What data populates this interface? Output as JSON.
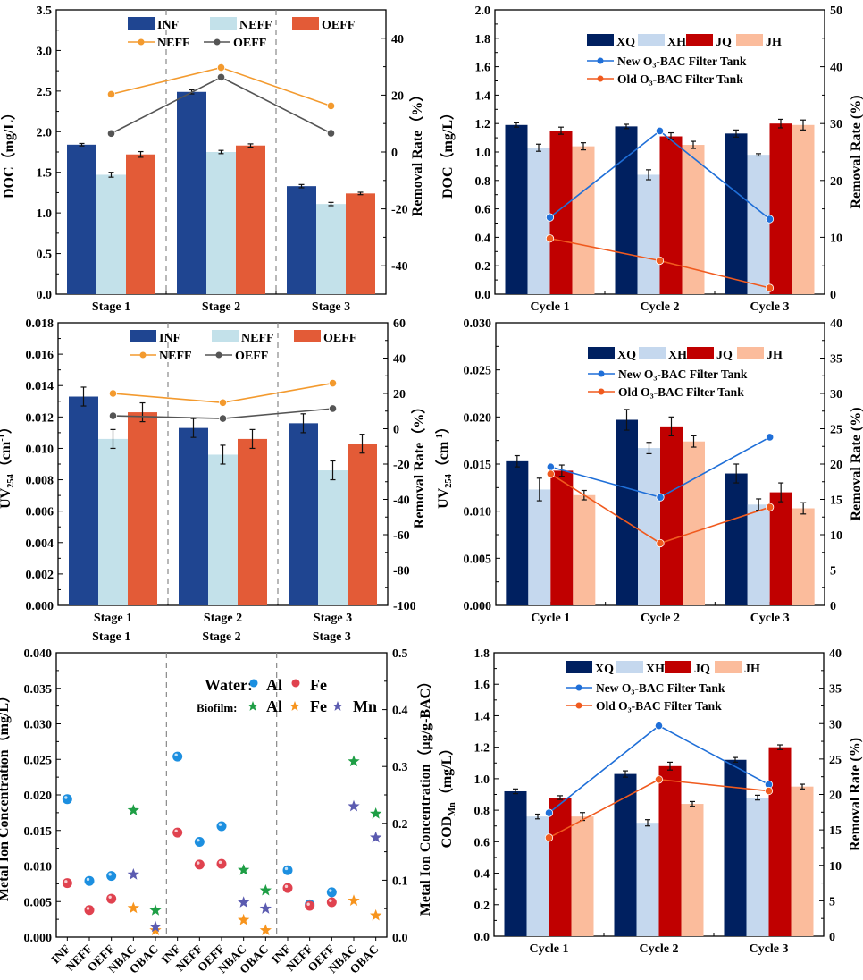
{
  "chart_data": [
    {
      "id": "doc-stage",
      "type": "bar",
      "title": "",
      "categories": [
        "Stage 1",
        "Stage 2",
        "Stage 3"
      ],
      "xlabel": "",
      "ylabel": "DOC（mg/L）",
      "ylim": [
        0,
        3.5
      ],
      "yticks": [
        0.0,
        0.5,
        1.0,
        1.5,
        2.0,
        2.5,
        3.0,
        3.5
      ],
      "ytick_decimals": 1,
      "y2label": "Removal Rate（%）",
      "y2lim": [
        -50,
        50
      ],
      "y2ticks": [
        -40,
        -20,
        0,
        20,
        40
      ],
      "grid": false,
      "dividers": true,
      "legend_placement": "top-center",
      "series": [
        {
          "name": "INF",
          "color": "#1F4591",
          "values": [
            1.84,
            2.49,
            1.33
          ],
          "errors": [
            0.015,
            0.025,
            0.02
          ]
        },
        {
          "name": "NEFF",
          "color": "#C3E1EA",
          "values": [
            1.47,
            1.75,
            1.11
          ],
          "errors": [
            0.03,
            0.02,
            0.02
          ]
        },
        {
          "name": "OEFF",
          "color": "#E35B37",
          "values": [
            1.72,
            1.83,
            1.24
          ],
          "errors": [
            0.035,
            0.02,
            0.015
          ]
        }
      ],
      "line_series": [
        {
          "name": "NEFF",
          "color": "#F39A2E",
          "values": [
            20.3,
            29.7,
            16.2
          ]
        },
        {
          "name": "OEFF",
          "color": "#555555",
          "values": [
            6.5,
            26.3,
            6.6
          ]
        }
      ]
    },
    {
      "id": "doc-cycle",
      "type": "bar",
      "title": "",
      "categories": [
        "Cycle 1",
        "Cycle 2",
        "Cycle 3"
      ],
      "xlabel": "",
      "ylabel": "DOC（mg/L）",
      "ylim": [
        0,
        2.0
      ],
      "yticks": [
        0.0,
        0.2,
        0.4,
        0.6,
        0.8,
        1.0,
        1.2,
        1.4,
        1.6,
        1.8,
        2.0
      ],
      "ytick_decimals": 1,
      "y2label": "Removal Rate (%)",
      "y2lim": [
        0,
        50
      ],
      "y2ticks": [
        0,
        10,
        20,
        30,
        40,
        50
      ],
      "grid": false,
      "dividers": false,
      "legend_placement": "top-center",
      "series": [
        {
          "name": "XQ",
          "color": "#002060",
          "values": [
            1.19,
            1.18,
            1.13
          ],
          "errors": [
            0.015,
            0.015,
            0.025
          ]
        },
        {
          "name": "XH",
          "color": "#C5D8EE",
          "values": [
            1.03,
            0.84,
            0.98
          ],
          "errors": [
            0.025,
            0.035,
            0.008
          ]
        },
        {
          "name": "JQ",
          "color": "#C00000",
          "values": [
            1.15,
            1.11,
            1.2
          ],
          "errors": [
            0.025,
            0.025,
            0.03
          ]
        },
        {
          "name": "JH",
          "color": "#FBBC9C",
          "values": [
            1.04,
            1.05,
            1.19
          ],
          "errors": [
            0.025,
            0.025,
            0.035
          ]
        }
      ],
      "line_series": [
        {
          "name": "New O₃-BAC Filter Tank",
          "color": "#1F6FD8",
          "values": [
            13.5,
            28.7,
            13.2
          ]
        },
        {
          "name": "Old O₃-BAC Filter Tank",
          "color": "#F05A1E",
          "values": [
            9.8,
            5.9,
            1.1
          ]
        }
      ]
    },
    {
      "id": "uv-stage",
      "type": "bar",
      "title": "",
      "categories": [
        "Stage 1",
        "Stage 2",
        "Stage 3"
      ],
      "xlabel": "",
      "ylabel": "UV254（cm-1）",
      "ylim": [
        0,
        0.018
      ],
      "yticks": [
        0.0,
        0.002,
        0.004,
        0.006,
        0.008,
        0.01,
        0.012,
        0.014,
        0.016,
        0.018
      ],
      "ytick_decimals": 3,
      "y2label": "Removal Rate（%）",
      "y2lim": [
        -100,
        60
      ],
      "y2ticks": [
        -100,
        -80,
        -60,
        -40,
        -20,
        0,
        20,
        40,
        60
      ],
      "grid": false,
      "dividers": true,
      "legend_placement": "top-center",
      "series": [
        {
          "name": "INF",
          "color": "#1F4591",
          "values": [
            0.0133,
            0.0113,
            0.0116
          ],
          "errors": [
            0.0006,
            0.0006,
            0.0006
          ]
        },
        {
          "name": "NEFF",
          "color": "#C3E1EA",
          "values": [
            0.0106,
            0.0096,
            0.0086
          ],
          "errors": [
            0.0006,
            0.0006,
            0.0006
          ]
        },
        {
          "name": "OEFF",
          "color": "#E35B37",
          "values": [
            0.0123,
            0.0106,
            0.0103
          ],
          "errors": [
            0.0006,
            0.0006,
            0.0006
          ]
        }
      ],
      "line_series": [
        {
          "name": "NEFF",
          "color": "#F39A2E",
          "values": [
            20.0,
            14.8,
            25.8
          ]
        },
        {
          "name": "OEFF",
          "color": "#555555",
          "values": [
            7.3,
            5.8,
            11.4
          ]
        }
      ]
    },
    {
      "id": "uv-cycle",
      "type": "bar",
      "title": "",
      "categories": [
        "Cycle 1",
        "Cycle 2",
        "Cycle 3"
      ],
      "xlabel": "",
      "ylabel": "UV254（cm-1）",
      "ylim": [
        0,
        0.03
      ],
      "yticks": [
        0.0,
        0.005,
        0.01,
        0.015,
        0.02,
        0.025,
        0.03
      ],
      "ytick_decimals": 3,
      "y2label": "Removal Rate (%)",
      "y2lim": [
        0,
        40
      ],
      "y2ticks": [
        0,
        5,
        10,
        15,
        20,
        25,
        30,
        35,
        40
      ],
      "grid": false,
      "dividers": false,
      "legend_placement": "top-center",
      "series": [
        {
          "name": "XQ",
          "color": "#002060",
          "values": [
            0.0153,
            0.0197,
            0.014
          ],
          "errors": [
            0.0006,
            0.0011,
            0.001
          ]
        },
        {
          "name": "XH",
          "color": "#C5D8EE",
          "values": [
            0.0123,
            0.0167,
            0.0107
          ],
          "errors": [
            0.0012,
            0.0006,
            0.0006
          ]
        },
        {
          "name": "JQ",
          "color": "#C00000",
          "values": [
            0.0143,
            0.019,
            0.012
          ],
          "errors": [
            0.0006,
            0.001,
            0.001
          ]
        },
        {
          "name": "JH",
          "color": "#FBBC9C",
          "values": [
            0.0117,
            0.0174,
            0.0103
          ],
          "errors": [
            0.0005,
            0.0006,
            0.0006
          ]
        }
      ],
      "line_series": [
        {
          "name": "New O₃-BAC Filter Tank",
          "color": "#1F6FD8",
          "values": [
            19.6,
            15.3,
            23.8
          ]
        },
        {
          "name": "Old O₃-BAC Filter Tank",
          "color": "#F05A1E",
          "values": [
            18.6,
            8.8,
            13.9
          ]
        }
      ]
    },
    {
      "id": "metal-ions",
      "type": "scatter",
      "title": "",
      "group_labels": [
        "Stage 1",
        "Stage 2",
        "Stage 3"
      ],
      "categories": [
        "INF",
        "NEFF",
        "OEFF",
        "NBAC",
        "OBAC",
        "INF",
        "NEFF",
        "OEFF",
        "NBAC",
        "OBAC",
        "INF",
        "NEFF",
        "OEFF",
        "NBAC",
        "OBAC"
      ],
      "xlabel": "",
      "ylabel": "Metal Ion Concentration（mg/L）",
      "ylim": [
        0,
        0.04
      ],
      "yticks": [
        0.0,
        0.005,
        0.01,
        0.015,
        0.02,
        0.025,
        0.03,
        0.035,
        0.04
      ],
      "ytick_decimals": 3,
      "y2label": "Metal Ion Concentration（μg/g-BAC）",
      "y2lim": [
        0,
        0.5
      ],
      "y2ticks": [
        0.0,
        0.1,
        0.2,
        0.3,
        0.4,
        0.5
      ],
      "grid": false,
      "dividers": true,
      "legend_placement": "top-right",
      "legend_rows": [
        {
          "label": "Water:",
          "items": [
            "Water Al",
            "Water Fe"
          ]
        },
        {
          "label": "Biofilm:",
          "items": [
            "Biofilm Al",
            "Biofilm Fe",
            "Biofilm Mn"
          ]
        }
      ],
      "series": [
        {
          "name": "Water Al",
          "short": "Al",
          "group": "Water",
          "marker": "sphere",
          "axis": "left",
          "color": "#1C8FE0",
          "points": [
            [
              0,
              0.0194
            ],
            [
              1,
              0.0079
            ],
            [
              2,
              0.0086
            ],
            [
              5,
              0.0254
            ],
            [
              6,
              0.0134
            ],
            [
              7,
              0.0156
            ],
            [
              10,
              0.0094
            ],
            [
              11,
              0.0046
            ],
            [
              12,
              0.0063
            ]
          ]
        },
        {
          "name": "Water Fe",
          "short": "Fe",
          "group": "Water",
          "marker": "sphere",
          "axis": "left",
          "color": "#E0424F",
          "points": [
            [
              0,
              0.0076
            ],
            [
              1,
              0.0038
            ],
            [
              2,
              0.0054
            ],
            [
              5,
              0.0147
            ],
            [
              6,
              0.0102
            ],
            [
              7,
              0.0103
            ],
            [
              10,
              0.0069
            ],
            [
              11,
              0.0044
            ],
            [
              12,
              0.0049
            ]
          ]
        },
        {
          "name": "Biofilm Al",
          "short": "Al",
          "group": "Biofilm",
          "marker": "star",
          "axis": "right",
          "color": "#1E9E45",
          "points": [
            [
              3,
              0.223
            ],
            [
              4,
              0.047
            ],
            [
              8,
              0.118
            ],
            [
              9,
              0.082
            ],
            [
              13,
              0.309
            ],
            [
              14,
              0.217
            ]
          ]
        },
        {
          "name": "Biofilm Fe",
          "short": "Fe",
          "group": "Biofilm",
          "marker": "star",
          "axis": "right",
          "color": "#F7941D",
          "points": [
            [
              3,
              0.051
            ],
            [
              4,
              0.012
            ],
            [
              8,
              0.03
            ],
            [
              9,
              0.012
            ],
            [
              13,
              0.064
            ],
            [
              14,
              0.038
            ]
          ]
        },
        {
          "name": "Biofilm Mn",
          "short": "Mn",
          "group": "Biofilm",
          "marker": "star",
          "axis": "right",
          "color": "#5B5BB0",
          "points": [
            [
              3,
              0.11
            ],
            [
              4,
              0.018
            ],
            [
              8,
              0.061
            ],
            [
              9,
              0.05
            ],
            [
              13,
              0.23
            ],
            [
              14,
              0.175
            ]
          ]
        }
      ]
    },
    {
      "id": "codmn-cycle",
      "type": "bar",
      "title": "",
      "categories": [
        "Cycle 1",
        "Cycle 2",
        "Cycle 3"
      ],
      "xlabel": "",
      "ylabel": "CODMn（mg/L）",
      "ylim": [
        0,
        1.8
      ],
      "yticks": [
        0.0,
        0.2,
        0.4,
        0.6,
        0.8,
        1.0,
        1.2,
        1.4,
        1.6,
        1.8
      ],
      "ytick_decimals": 1,
      "y2label": "Removal Rate (%)",
      "y2lim": [
        0,
        40
      ],
      "y2ticks": [
        0,
        5,
        10,
        15,
        20,
        25,
        30,
        35,
        40
      ],
      "grid": false,
      "dividers": false,
      "legend_placement": "top-center",
      "series": [
        {
          "name": "XQ",
          "color": "#002060",
          "values": [
            0.92,
            1.03,
            1.12
          ],
          "errors": [
            0.015,
            0.02,
            0.015
          ]
        },
        {
          "name": "XH",
          "color": "#C5D8EE",
          "values": [
            0.76,
            0.72,
            0.88
          ],
          "errors": [
            0.015,
            0.02,
            0.015
          ]
        },
        {
          "name": "JQ",
          "color": "#C00000",
          "values": [
            0.88,
            1.08,
            1.2
          ],
          "errors": [
            0.012,
            0.025,
            0.015
          ]
        },
        {
          "name": "JH",
          "color": "#FBBC9C",
          "values": [
            0.76,
            0.84,
            0.95
          ],
          "errors": [
            0.025,
            0.015,
            0.015
          ]
        }
      ],
      "line_series": [
        {
          "name": "New O₃-BAC Filter Tank",
          "color": "#1F6FD8",
          "values": [
            17.4,
            29.7,
            21.4
          ]
        },
        {
          "name": "Old O₃-BAC Filter Tank",
          "color": "#F05A1E",
          "values": [
            13.9,
            22.1,
            20.5
          ]
        }
      ]
    }
  ]
}
